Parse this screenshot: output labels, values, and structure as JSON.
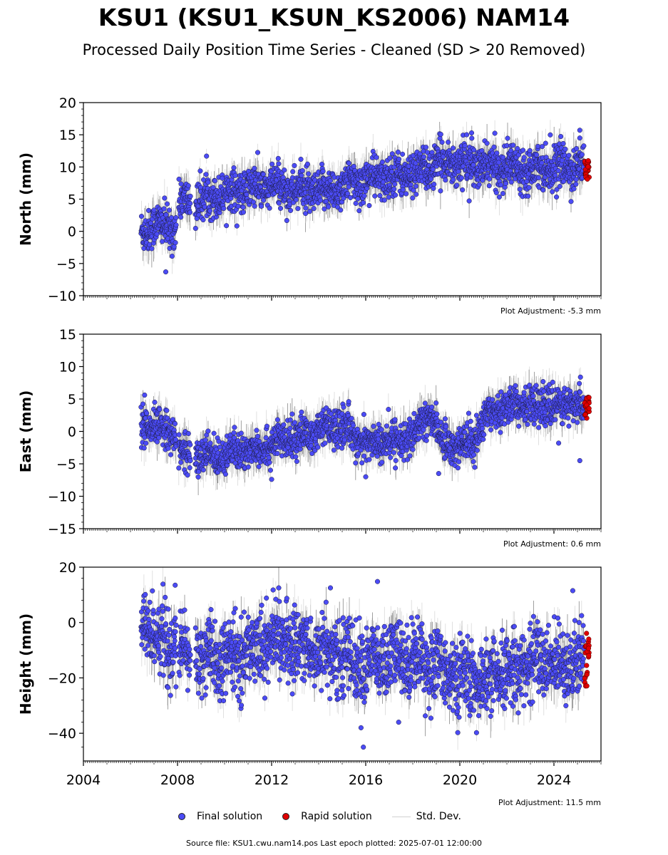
{
  "title": "KSU1 (KSU1_KSUN_KS2006) NAM14",
  "subtitle": "Processed Daily Position Time Series - Cleaned (SD > 20 Removed)",
  "legend": {
    "final": "Final solution",
    "rapid": "Rapid solution",
    "std": "Std. Dev."
  },
  "source_line": "Source file: KSU1.cwu.nam14.pos  Last epoch plotted: 2025-07-01 12:00:00",
  "colors": {
    "final": "#4b4bf5",
    "rapid": "#e00000",
    "std": "#a8a8a8"
  },
  "chart_data": [
    {
      "type": "scatter",
      "ylabel": "North (mm)",
      "xlim": [
        2004,
        2026
      ],
      "ylim": [
        -10,
        20
      ],
      "yticks": [
        -10,
        -5,
        0,
        5,
        10,
        15,
        20
      ],
      "xticks": [
        2004,
        2008,
        2012,
        2016,
        2020,
        2024
      ],
      "adjustment": "Plot Adjustment: -5.3 mm",
      "grid": false,
      "trend": [
        [
          2006.5,
          0
        ],
        [
          2007.0,
          1
        ],
        [
          2007.9,
          0.5
        ],
        [
          2008.1,
          4.5
        ],
        [
          2008.8,
          4.5
        ],
        [
          2010,
          6
        ],
        [
          2012,
          7
        ],
        [
          2014,
          6
        ],
        [
          2016,
          8
        ],
        [
          2018,
          9
        ],
        [
          2019.5,
          11
        ],
        [
          2021,
          10
        ],
        [
          2023,
          10
        ],
        [
          2025.3,
          10
        ]
      ],
      "noise": 1.6,
      "std_dev_range": [
        1,
        3
      ],
      "outliers": [
        [
          2007.5,
          -6.3
        ],
        [
          2020.5,
          15.3
        ],
        [
          2025.1,
          15.7
        ],
        [
          2025.1,
          14.5
        ],
        [
          2012.3,
          10.5
        ]
      ],
      "rapid": {
        "x_range": [
          2025.3,
          2025.5
        ],
        "y_range": [
          8,
          11
        ]
      }
    },
    {
      "type": "scatter",
      "ylabel": "East (mm)",
      "xlim": [
        2004,
        2026
      ],
      "ylim": [
        -15,
        15
      ],
      "yticks": [
        -15,
        -10,
        -5,
        0,
        5,
        10,
        15
      ],
      "xticks": [
        2004,
        2008,
        2012,
        2016,
        2020,
        2024
      ],
      "adjustment": "Plot Adjustment: 0.6 mm",
      "grid": false,
      "trend": [
        [
          2006.5,
          0.5
        ],
        [
          2007.8,
          0.5
        ],
        [
          2008.0,
          -3
        ],
        [
          2008.8,
          -4
        ],
        [
          2011,
          -3
        ],
        [
          2013,
          -1
        ],
        [
          2015,
          1
        ],
        [
          2016,
          -2
        ],
        [
          2018,
          -1
        ],
        [
          2018.8,
          3
        ],
        [
          2019.3,
          -2
        ],
        [
          2020.5,
          -2
        ],
        [
          2021.2,
          3
        ],
        [
          2022,
          4
        ],
        [
          2025.3,
          4
        ]
      ],
      "noise": 1.4,
      "std_dev_range": [
        1,
        3
      ],
      "outliers": [
        [
          2006.6,
          5.6
        ],
        [
          2024.2,
          -1.8
        ],
        [
          2025.1,
          -4.5
        ],
        [
          2019.1,
          -6.5
        ],
        [
          2016.0,
          -7.0
        ],
        [
          2012.0,
          -7.4
        ]
      ],
      "rapid": {
        "x_range": [
          2025.3,
          2025.5
        ],
        "y_range": [
          2,
          5.3
        ]
      }
    },
    {
      "type": "scatter",
      "ylabel": "Height (mm)",
      "xlim": [
        2004,
        2026
      ],
      "ylim": [
        -50,
        20
      ],
      "yticks": [
        -40,
        -20,
        0,
        20
      ],
      "xticks": [
        2004,
        2008,
        2012,
        2016,
        2020,
        2024
      ],
      "xtick_labels": [
        "2004",
        "2008",
        "2012",
        "2016",
        "2020",
        "2024"
      ],
      "adjustment": "Plot Adjustment: 11.5 mm",
      "grid": false,
      "trend": [
        [
          2006.5,
          0
        ],
        [
          2007.5,
          -8
        ],
        [
          2008.5,
          -12
        ],
        [
          2010,
          -14
        ],
        [
          2012,
          -6
        ],
        [
          2014,
          -10
        ],
        [
          2016,
          -15
        ],
        [
          2018,
          -12
        ],
        [
          2020,
          -20
        ],
        [
          2021,
          -22
        ],
        [
          2023,
          -14
        ],
        [
          2025.3,
          -15
        ]
      ],
      "noise": 6.5,
      "std_dev_range": [
        3,
        8
      ],
      "outliers": [
        [
          2015.9,
          -45
        ],
        [
          2015.8,
          -38
        ],
        [
          2016.5,
          14.8
        ],
        [
          2014.5,
          12.5
        ],
        [
          2007.9,
          13.5
        ],
        [
          2024.8,
          11.5
        ],
        [
          2017.4,
          -36
        ]
      ],
      "rapid": {
        "x_range": [
          2025.3,
          2025.5
        ],
        "y_range": [
          -23,
          -2
        ]
      }
    }
  ]
}
